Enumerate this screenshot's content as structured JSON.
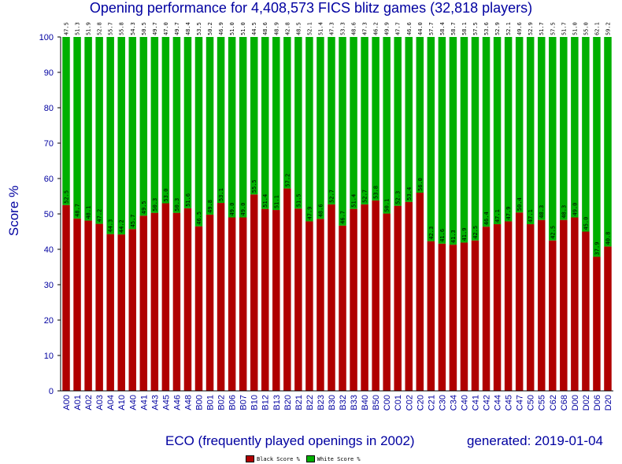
{
  "chart_data": {
    "type": "bar",
    "stacked": true,
    "title": "Opening performance for 4,408,573 FICS blitz games (32,818 players)",
    "xlabel": "ECO (frequently played openings in 2002)",
    "ylabel": "Score %",
    "generated": "generated: 2019-01-04",
    "ylim": [
      0,
      100
    ],
    "yticks": [
      0,
      10,
      20,
      30,
      40,
      50,
      60,
      70,
      80,
      90,
      100
    ],
    "grid": false,
    "legend_position": "bottom",
    "categories": [
      "A00",
      "A01",
      "A02",
      "A03",
      "A04",
      "A10",
      "A40",
      "A41",
      "A43",
      "A45",
      "A46",
      "A48",
      "B00",
      "B01",
      "B02",
      "B06",
      "B07",
      "B10",
      "B12",
      "B13",
      "B20",
      "B21",
      "B22",
      "B23",
      "B30",
      "B32",
      "B33",
      "B40",
      "B50",
      "C00",
      "C01",
      "C02",
      "C20",
      "C21",
      "C30",
      "C34",
      "C40",
      "C41",
      "C42",
      "C44",
      "C45",
      "C47",
      "C50",
      "C55",
      "C62",
      "C68",
      "D00",
      "D02",
      "D06",
      "D20"
    ],
    "series": [
      {
        "name": "Black Score %",
        "color": "#b00000",
        "values": [
          52.5,
          48.7,
          48.1,
          47.2,
          44.3,
          44.2,
          45.7,
          49.5,
          50.3,
          53.0,
          50.3,
          51.6,
          46.5,
          49.8,
          53.1,
          49.0,
          49.0,
          55.5,
          51.4,
          51.1,
          57.2,
          51.5,
          47.9,
          48.6,
          52.7,
          46.7,
          51.4,
          52.7,
          53.8,
          50.1,
          52.3,
          53.4,
          56.0,
          42.3,
          41.6,
          41.3,
          41.9,
          42.5,
          46.4,
          47.1,
          47.9,
          50.4,
          47.1,
          48.3,
          42.5,
          48.3,
          49.0,
          45.0,
          37.9,
          40.8
        ]
      },
      {
        "name": "White Score %",
        "color": "#00b000",
        "values": [
          47.5,
          51.3,
          51.9,
          52.8,
          55.7,
          55.8,
          54.3,
          50.5,
          49.7,
          47.0,
          49.7,
          48.4,
          53.5,
          50.2,
          46.9,
          51.0,
          51.0,
          44.5,
          48.6,
          48.9,
          42.8,
          48.5,
          52.1,
          51.4,
          47.3,
          53.3,
          48.6,
          47.3,
          46.2,
          49.9,
          47.7,
          46.6,
          44.0,
          57.7,
          58.4,
          58.7,
          58.1,
          57.5,
          53.6,
          52.9,
          52.1,
          49.6,
          52.9,
          51.7,
          57.5,
          51.7,
          51.0,
          55.0,
          62.1,
          59.2
        ]
      }
    ]
  }
}
